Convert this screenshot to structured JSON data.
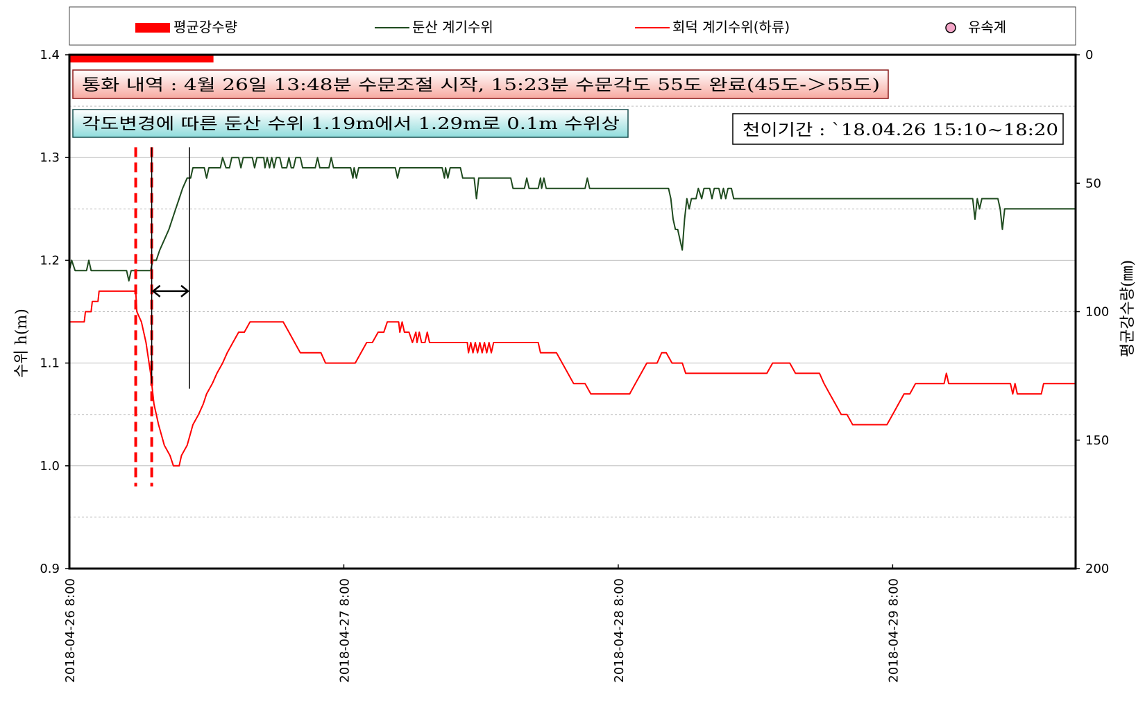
{
  "chart_data": {
    "type": "line",
    "legend": {
      "placement": "top",
      "entries": [
        {
          "name": "평균강수량",
          "kind": "bar",
          "color": "#ff0000"
        },
        {
          "name": "둔산 계기수위",
          "kind": "line",
          "color": "#1e4a1e"
        },
        {
          "name": "회덕 계기수위(하류)",
          "kind": "line",
          "color": "#ff0000"
        },
        {
          "name": "유속계",
          "kind": "marker",
          "color": "#f4a6c8"
        }
      ]
    },
    "x_axis": {
      "unit": "hours since 2018-04-26 8:00",
      "range": [
        0,
        88
      ],
      "tick_hours": [
        0,
        24,
        48,
        72
      ],
      "tick_labels": [
        "2018-04-26 8:00",
        "2018-04-27 8:00",
        "2018-04-28 8:00",
        "2018-04-29 8:00"
      ]
    },
    "y_left": {
      "label": "수위 h(m)",
      "range": [
        0.9,
        1.4
      ],
      "ticks": [
        "0.9",
        "1.0",
        "1.1",
        "1.2",
        "1.3",
        "1.4"
      ],
      "grid": [
        0.95,
        1.0,
        1.05,
        1.1,
        1.15,
        1.2,
        1.25,
        1.3,
        1.35
      ]
    },
    "y_right": {
      "label": "평균강수량(㎜)",
      "range": [
        0,
        200
      ],
      "inverted": true,
      "ticks": [
        "0",
        "50",
        "100",
        "150",
        "200"
      ]
    },
    "rainfall": [
      {
        "start_hour": 0,
        "end_hour": 12.6,
        "value_mm": 3
      }
    ],
    "series": [
      {
        "name": "둔산 계기수위",
        "color": "#1e4a1e",
        "points": [
          [
            0,
            1.19
          ],
          [
            0.2,
            1.2
          ],
          [
            0.5,
            1.19
          ],
          [
            1.5,
            1.19
          ],
          [
            1.7,
            1.2
          ],
          [
            1.9,
            1.19
          ],
          [
            5,
            1.19
          ],
          [
            5.2,
            1.18
          ],
          [
            5.4,
            1.19
          ],
          [
            7.1,
            1.19
          ],
          [
            7.3,
            1.2
          ],
          [
            7.6,
            1.2
          ],
          [
            7.9,
            1.21
          ],
          [
            8.3,
            1.22
          ],
          [
            8.7,
            1.23
          ],
          [
            9.0,
            1.24
          ],
          [
            9.3,
            1.25
          ],
          [
            9.6,
            1.26
          ],
          [
            9.9,
            1.27
          ],
          [
            10.3,
            1.28
          ],
          [
            10.6,
            1.28
          ],
          [
            10.8,
            1.29
          ],
          [
            11.8,
            1.29
          ],
          [
            12.0,
            1.28
          ],
          [
            12.2,
            1.29
          ],
          [
            13.2,
            1.29
          ],
          [
            13.4,
            1.3
          ],
          [
            13.7,
            1.29
          ],
          [
            14.0,
            1.29
          ],
          [
            14.2,
            1.3
          ],
          [
            14.8,
            1.3
          ],
          [
            15.0,
            1.29
          ],
          [
            15.2,
            1.3
          ],
          [
            16.0,
            1.3
          ],
          [
            16.2,
            1.29
          ],
          [
            16.4,
            1.3
          ],
          [
            17.0,
            1.3
          ],
          [
            17.1,
            1.29
          ],
          [
            17.3,
            1.3
          ],
          [
            17.5,
            1.29
          ],
          [
            17.7,
            1.3
          ],
          [
            17.9,
            1.29
          ],
          [
            18.1,
            1.3
          ],
          [
            18.4,
            1.3
          ],
          [
            18.6,
            1.29
          ],
          [
            19.0,
            1.29
          ],
          [
            19.2,
            1.3
          ],
          [
            19.4,
            1.29
          ],
          [
            19.6,
            1.29
          ],
          [
            19.8,
            1.3
          ],
          [
            20.2,
            1.3
          ],
          [
            20.4,
            1.29
          ],
          [
            21.5,
            1.29
          ],
          [
            21.7,
            1.3
          ],
          [
            21.9,
            1.29
          ],
          [
            22.7,
            1.29
          ],
          [
            22.9,
            1.3
          ],
          [
            23.1,
            1.29
          ],
          [
            24.6,
            1.29
          ],
          [
            24.8,
            1.28
          ],
          [
            24.9,
            1.29
          ],
          [
            25.1,
            1.28
          ],
          [
            25.3,
            1.29
          ],
          [
            28.5,
            1.29
          ],
          [
            28.7,
            1.28
          ],
          [
            28.9,
            1.29
          ],
          [
            32.6,
            1.29
          ],
          [
            32.8,
            1.28
          ],
          [
            32.9,
            1.29
          ],
          [
            33.1,
            1.28
          ],
          [
            33.3,
            1.29
          ],
          [
            34.2,
            1.29
          ],
          [
            34.4,
            1.28
          ],
          [
            35.4,
            1.28
          ],
          [
            35.6,
            1.26
          ],
          [
            35.8,
            1.28
          ],
          [
            38.6,
            1.28
          ],
          [
            38.8,
            1.27
          ],
          [
            39.8,
            1.27
          ],
          [
            40.0,
            1.28
          ],
          [
            40.2,
            1.27
          ],
          [
            41.0,
            1.27
          ],
          [
            41.2,
            1.28
          ],
          [
            41.3,
            1.27
          ],
          [
            41.5,
            1.28
          ],
          [
            41.7,
            1.27
          ],
          [
            45.1,
            1.27
          ],
          [
            45.3,
            1.28
          ],
          [
            45.5,
            1.27
          ],
          [
            52.4,
            1.27
          ],
          [
            52.6,
            1.26
          ],
          [
            52.8,
            1.24
          ],
          [
            53.0,
            1.23
          ],
          [
            53.2,
            1.23
          ],
          [
            53.4,
            1.22
          ],
          [
            53.6,
            1.21
          ],
          [
            53.8,
            1.24
          ],
          [
            54.0,
            1.26
          ],
          [
            54.2,
            1.25
          ],
          [
            54.4,
            1.26
          ],
          [
            54.8,
            1.26
          ],
          [
            55.0,
            1.27
          ],
          [
            55.3,
            1.26
          ],
          [
            55.5,
            1.27
          ],
          [
            56.0,
            1.27
          ],
          [
            56.2,
            1.26
          ],
          [
            56.4,
            1.27
          ],
          [
            56.8,
            1.27
          ],
          [
            57.0,
            1.26
          ],
          [
            57.2,
            1.27
          ],
          [
            57.4,
            1.26
          ],
          [
            57.6,
            1.27
          ],
          [
            57.9,
            1.27
          ],
          [
            58.1,
            1.26
          ],
          [
            79.0,
            1.26
          ],
          [
            79.2,
            1.24
          ],
          [
            79.4,
            1.26
          ],
          [
            79.6,
            1.25
          ],
          [
            79.8,
            1.26
          ],
          [
            81.2,
            1.26
          ],
          [
            81.4,
            1.25
          ],
          [
            81.6,
            1.23
          ],
          [
            81.8,
            1.25
          ],
          [
            88,
            1.25
          ]
        ]
      },
      {
        "name": "회덕 계기수위(하류)",
        "color": "#ff0000",
        "points": [
          [
            0,
            1.14
          ],
          [
            1.3,
            1.14
          ],
          [
            1.4,
            1.15
          ],
          [
            1.9,
            1.15
          ],
          [
            2.0,
            1.16
          ],
          [
            2.5,
            1.16
          ],
          [
            2.6,
            1.17
          ],
          [
            5.8,
            1.17
          ],
          [
            5.9,
            1.15
          ],
          [
            6.3,
            1.14
          ],
          [
            6.7,
            1.12
          ],
          [
            7.1,
            1.09
          ],
          [
            7.4,
            1.06
          ],
          [
            7.8,
            1.04
          ],
          [
            8.3,
            1.02
          ],
          [
            8.8,
            1.01
          ],
          [
            9.1,
            1.0
          ],
          [
            9.6,
            1.0
          ],
          [
            9.8,
            1.01
          ],
          [
            10.3,
            1.02
          ],
          [
            10.8,
            1.04
          ],
          [
            11.3,
            1.05
          ],
          [
            11.7,
            1.06
          ],
          [
            12.0,
            1.07
          ],
          [
            12.5,
            1.08
          ],
          [
            12.9,
            1.09
          ],
          [
            13.4,
            1.1
          ],
          [
            13.8,
            1.11
          ],
          [
            14.3,
            1.12
          ],
          [
            14.8,
            1.13
          ],
          [
            15.3,
            1.13
          ],
          [
            15.8,
            1.14
          ],
          [
            18.7,
            1.14
          ],
          [
            19.2,
            1.13
          ],
          [
            19.7,
            1.12
          ],
          [
            20.2,
            1.11
          ],
          [
            20.7,
            1.11
          ],
          [
            21.2,
            1.11
          ],
          [
            22.0,
            1.11
          ],
          [
            22.4,
            1.1
          ],
          [
            25.0,
            1.1
          ],
          [
            25.5,
            1.11
          ],
          [
            26.0,
            1.12
          ],
          [
            26.5,
            1.12
          ],
          [
            27.0,
            1.13
          ],
          [
            27.5,
            1.13
          ],
          [
            27.8,
            1.14
          ],
          [
            28.8,
            1.14
          ],
          [
            28.9,
            1.13
          ],
          [
            29.1,
            1.14
          ],
          [
            29.3,
            1.13
          ],
          [
            29.7,
            1.13
          ],
          [
            30.0,
            1.12
          ],
          [
            30.3,
            1.13
          ],
          [
            30.4,
            1.12
          ],
          [
            30.6,
            1.13
          ],
          [
            30.8,
            1.12
          ],
          [
            31.1,
            1.12
          ],
          [
            31.3,
            1.13
          ],
          [
            31.5,
            1.12
          ],
          [
            34.8,
            1.12
          ],
          [
            34.9,
            1.11
          ],
          [
            35.1,
            1.12
          ],
          [
            35.3,
            1.11
          ],
          [
            35.5,
            1.12
          ],
          [
            35.7,
            1.11
          ],
          [
            35.9,
            1.12
          ],
          [
            36.1,
            1.11
          ],
          [
            36.3,
            1.12
          ],
          [
            36.5,
            1.11
          ],
          [
            36.7,
            1.12
          ],
          [
            36.9,
            1.11
          ],
          [
            37.1,
            1.12
          ],
          [
            41.0,
            1.12
          ],
          [
            41.2,
            1.11
          ],
          [
            42.6,
            1.11
          ],
          [
            43.1,
            1.1
          ],
          [
            43.6,
            1.09
          ],
          [
            44.1,
            1.08
          ],
          [
            45.1,
            1.08
          ],
          [
            45.6,
            1.07
          ],
          [
            49.0,
            1.07
          ],
          [
            49.5,
            1.08
          ],
          [
            50.0,
            1.09
          ],
          [
            50.5,
            1.1
          ],
          [
            51.4,
            1.1
          ],
          [
            51.8,
            1.11
          ],
          [
            52.2,
            1.11
          ],
          [
            52.7,
            1.1
          ],
          [
            53.6,
            1.1
          ],
          [
            53.9,
            1.09
          ],
          [
            61.0,
            1.09
          ],
          [
            61.5,
            1.1
          ],
          [
            63.0,
            1.1
          ],
          [
            63.5,
            1.09
          ],
          [
            65.6,
            1.09
          ],
          [
            66.0,
            1.08
          ],
          [
            66.5,
            1.07
          ],
          [
            67.0,
            1.06
          ],
          [
            67.5,
            1.05
          ],
          [
            68.0,
            1.05
          ],
          [
            68.5,
            1.04
          ],
          [
            71.5,
            1.04
          ],
          [
            72.0,
            1.05
          ],
          [
            72.5,
            1.06
          ],
          [
            73.0,
            1.07
          ],
          [
            73.5,
            1.07
          ],
          [
            74.0,
            1.08
          ],
          [
            76.5,
            1.08
          ],
          [
            76.7,
            1.09
          ],
          [
            76.9,
            1.08
          ],
          [
            82.3,
            1.08
          ],
          [
            82.5,
            1.07
          ],
          [
            82.7,
            1.08
          ],
          [
            82.9,
            1.07
          ],
          [
            85.0,
            1.07
          ],
          [
            85.2,
            1.08
          ],
          [
            88,
            1.08
          ]
        ]
      }
    ],
    "reference_lines": [
      {
        "hour": 5.8,
        "ymin": 0.98,
        "ymax": 1.31,
        "style": "dashed",
        "color": "#ff0000"
      },
      {
        "hour": 7.2,
        "ymin": 0.98,
        "ymax": 1.31,
        "style": "dashed",
        "color": "#ff0000"
      },
      {
        "hour": 7.2,
        "ymin": 1.08,
        "ymax": 1.31,
        "style": "solid",
        "color": "#000000"
      },
      {
        "hour": 10.5,
        "ymin": 1.075,
        "ymax": 1.31,
        "style": "solid",
        "color": "#000000"
      }
    ],
    "double_arrow": {
      "from_hour": 7.2,
      "to_hour": 10.5,
      "y": 1.17
    },
    "annotations": [
      {
        "id": "call",
        "text": "통화 내역 : 4월 26일 13:48분 수문조절 시작, 15:23분 수문각도 55도 완료(45도-＞55도)",
        "fill_start": "#ffffff",
        "fill_end": "#f7a9a0",
        "border": "#8b1a1a"
      },
      {
        "id": "level",
        "text": "각도변경에 따른 둔산 수위 1.19m에서 1.29m로 0.1m 수위상",
        "fill_start": "#ffffff",
        "fill_end": "#8fdcdc",
        "border": "#1a5050"
      },
      {
        "id": "transit",
        "text": "천이기간 : `18.04.26 15:10~18:20",
        "fill_start": "#ffffff",
        "fill_end": "#ffffff",
        "border": "#000000"
      }
    ]
  }
}
